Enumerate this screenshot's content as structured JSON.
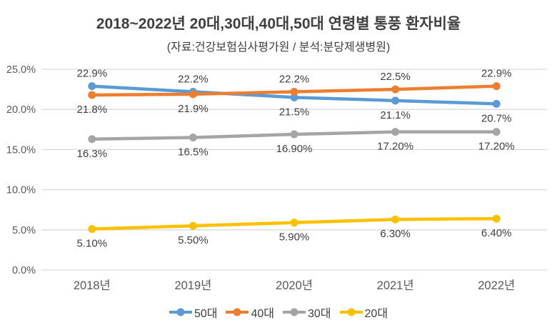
{
  "chart_data": {
    "type": "line",
    "title": "2018~2022년 20대,30대,40대,50대 연령별 통풍 환자비율",
    "subtitle": "(자료:건강보험심사평가원 / 분석:분당제생병원)",
    "xlabel": "",
    "ylabel": "",
    "categories": [
      "2018년",
      "2019년",
      "2020년",
      "2021년",
      "2022년"
    ],
    "series": [
      {
        "name": "50대",
        "color": "#5B9BD5",
        "values": [
          22.9,
          22.2,
          21.5,
          21.1,
          20.7
        ],
        "labels": [
          "22.9%",
          "22.2%",
          "21.5%",
          "21.1%",
          "20.7%"
        ],
        "label_side": [
          "above",
          "above",
          "below",
          "below",
          "below"
        ]
      },
      {
        "name": "40대",
        "color": "#ED7D31",
        "values": [
          21.8,
          21.9,
          22.2,
          22.5,
          22.9
        ],
        "labels": [
          "21.8%",
          "21.9%",
          "22.2%",
          "22.5%",
          "22.9%"
        ],
        "label_side": [
          "below",
          "below",
          "above",
          "above",
          "above"
        ]
      },
      {
        "name": "30대",
        "color": "#A5A5A5",
        "values": [
          16.3,
          16.5,
          16.9,
          17.2,
          17.2
        ],
        "labels": [
          "16.3%",
          "16.5%",
          "16.90%",
          "17.20%",
          "17.20%"
        ],
        "label_side": [
          "below",
          "below",
          "below",
          "below",
          "below"
        ]
      },
      {
        "name": "20대",
        "color": "#FFC000",
        "values": [
          5.1,
          5.5,
          5.9,
          6.3,
          6.4
        ],
        "labels": [
          "5.10%",
          "5.50%",
          "5.90%",
          "6.30%",
          "6.40%"
        ],
        "label_side": [
          "below",
          "below",
          "below",
          "below",
          "below"
        ]
      }
    ],
    "y_ticks": [
      {
        "value": 25,
        "label": "25.0%"
      },
      {
        "value": 20,
        "label": "20.0%"
      },
      {
        "value": 15,
        "label": "15.0%"
      },
      {
        "value": 10,
        "label": "10.0%"
      },
      {
        "value": 5,
        "label": "5.0%"
      },
      {
        "value": 0,
        "label": "0.0%"
      }
    ],
    "ylim": [
      0,
      25
    ],
    "grid": true,
    "legend_position": "bottom"
  },
  "colors": {
    "gridline": "#D9D9D9",
    "axis_text": "#595959",
    "data_label_text": "#404040",
    "title_text": "#3F3F3F",
    "background": "#FFFFFF"
  }
}
